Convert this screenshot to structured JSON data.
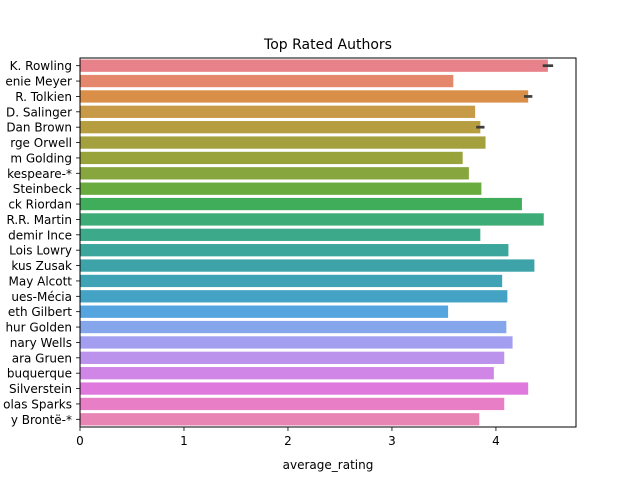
{
  "chart_data": {
    "type": "bar",
    "orientation": "horizontal",
    "title": "Top Rated Authors",
    "xlabel": "average_rating",
    "ylabel": "",
    "xlim": [
      0,
      4.77
    ],
    "xticks": [
      0,
      1,
      2,
      3,
      4
    ],
    "grid": false,
    "legend": "none",
    "categories": [
      "J.K. Rowling",
      "Stephenie Meyer",
      "J.R.R. Tolkien",
      "J.D. Salinger",
      "Dan Brown",
      "George Orwell",
      "William Golding",
      "William Shakespeare-*",
      "John Steinbeck",
      "Rick Riordan",
      "George R.R. Martin",
      "Ildemir Ince",
      "Lois Lowry",
      "Markus Zusak",
      "Louisa May Alcott",
      "Jacques-Mécia",
      "Elizabeth Gilbert",
      "Arthur Golden",
      "Rosemary Wells",
      "Sara Gruen",
      "Albuquerque",
      "Shel Silverstein",
      "Nicholas Sparks",
      "Charlotte Brontë-*"
    ],
    "category_labels_visible": [
      "K. Rowling",
      "enie Meyer",
      "R. Tolkien",
      "D. Salinger",
      "Dan Brown",
      "rge Orwell",
      "m Golding",
      "kespeare-*",
      "Steinbeck",
      "ck Riordan",
      "R.R. Martin",
      "demir Ince",
      "Lois Lowry",
      "kus Zusak",
      "May Alcott",
      "ues-Mécia",
      "eth Gilbert",
      "hur Golden",
      "nary Wells",
      "ara Gruen",
      "buquerque",
      "Silverstein",
      "olas Sparks",
      "y Brontë-*"
    ],
    "values": [
      4.5,
      3.59,
      4.31,
      3.8,
      3.85,
      3.9,
      3.68,
      3.74,
      3.86,
      4.25,
      4.46,
      3.85,
      4.12,
      4.37,
      4.06,
      4.11,
      3.54,
      4.1,
      4.16,
      4.08,
      3.98,
      4.31,
      4.08,
      3.84
    ],
    "errors": [
      0.05,
      0,
      0.04,
      0,
      0.04,
      0,
      0,
      0,
      0,
      0,
      0,
      0,
      0,
      0,
      0,
      0,
      0,
      0,
      0,
      0,
      0,
      0,
      0,
      0
    ],
    "colors": [
      "#e8828a",
      "#e5876c",
      "#d98f48",
      "#c79a47",
      "#b59d40",
      "#a4a03d",
      "#98a33c",
      "#87a63e",
      "#69ab3f",
      "#3fad5a",
      "#3eac76",
      "#3da98b",
      "#3ca69c",
      "#3da3a9",
      "#3fa3b5",
      "#44a3c4",
      "#53a4df",
      "#85a6ea",
      "#a39ef0",
      "#bb93ec",
      "#d086e7",
      "#e079dd",
      "#e87ec6",
      "#e985b4"
    ]
  }
}
